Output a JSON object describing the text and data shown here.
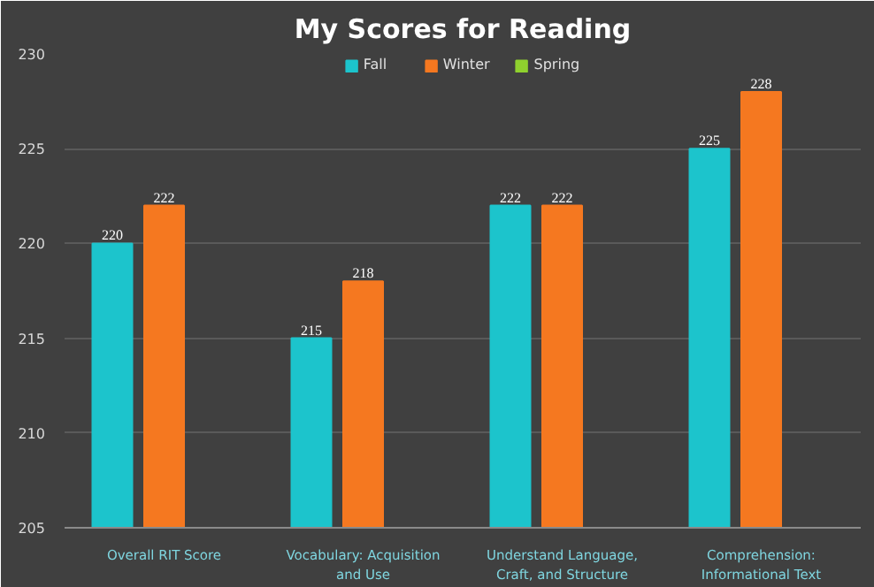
{
  "chart_data": {
    "type": "bar",
    "title": "My Scores for Reading",
    "categories": [
      "Overall RIT Score",
      "Vocabulary: Acquisition and Use",
      "Understand Language, Craft, and Structure",
      "Comprehension: Informational Text"
    ],
    "series": [
      {
        "name": "Fall",
        "color": "#1cc4cc",
        "values": [
          220,
          215,
          222,
          225
        ]
      },
      {
        "name": "Winter",
        "color": "#f57820",
        "values": [
          222,
          218,
          222,
          228
        ]
      },
      {
        "name": "Spring",
        "color": "#8fd12e",
        "values": [
          null,
          null,
          null,
          null
        ]
      }
    ],
    "ylim": [
      205,
      230
    ],
    "yticks": [
      205,
      210,
      215,
      220,
      225,
      230
    ],
    "grid": "y",
    "legend": "top",
    "data_labels": true
  }
}
